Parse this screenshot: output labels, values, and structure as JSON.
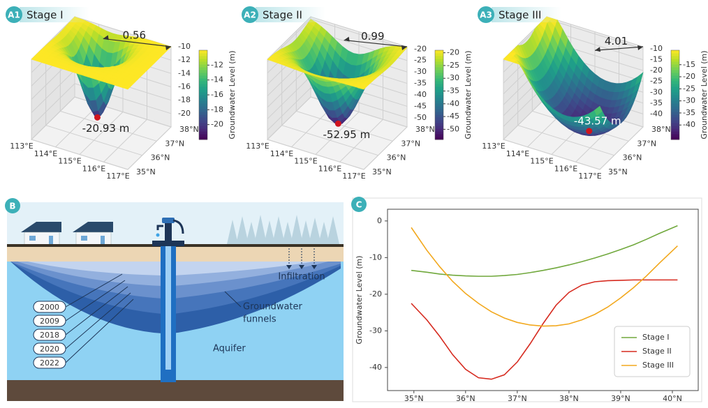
{
  "chart_data": [
    {
      "type": "surface",
      "panel": "A1",
      "title": "Stage I",
      "distance": 0.56,
      "minimum": {
        "value": -20.93,
        "label": "-20.93 m"
      },
      "xlim": [
        113,
        117
      ],
      "xticks": [
        {
          "value": 113,
          "label": "113°E"
        },
        {
          "value": 114,
          "label": "114°E"
        },
        {
          "value": 115,
          "label": "115°E"
        },
        {
          "value": 116,
          "label": "116°E"
        },
        {
          "value": 117,
          "label": "117°E"
        }
      ],
      "ylim": [
        35,
        38
      ],
      "yticks": [
        {
          "value": 35,
          "label": "35°N"
        },
        {
          "value": 36,
          "label": "36°N"
        },
        {
          "value": 37,
          "label": "37°N"
        },
        {
          "value": 38,
          "label": "38°N"
        }
      ],
      "zlim": [
        -22,
        -10
      ],
      "zticks": [
        -10,
        -12,
        -14,
        -16,
        -18,
        -20
      ],
      "colorbar": {
        "label": "Groundwater Level (m)",
        "ticks": [
          -12,
          -14,
          -16,
          -18,
          -20
        ]
      }
    },
    {
      "type": "surface",
      "panel": "A2",
      "title": "Stage II",
      "distance": 0.99,
      "minimum": {
        "value": -52.95,
        "label": "-52.95 m"
      },
      "xlim": [
        113,
        117
      ],
      "xticks": [
        {
          "value": 113,
          "label": "113°E"
        },
        {
          "value": 114,
          "label": "114°E"
        },
        {
          "value": 115,
          "label": "115°E"
        },
        {
          "value": 116,
          "label": "116°E"
        },
        {
          "value": 117,
          "label": "117°E"
        }
      ],
      "ylim": [
        35,
        38
      ],
      "yticks": [
        {
          "value": 35,
          "label": "35°N"
        },
        {
          "value": 36,
          "label": "36°N"
        },
        {
          "value": 37,
          "label": "37°N"
        },
        {
          "value": 38,
          "label": "38°N"
        }
      ],
      "zlim": [
        -54,
        -19
      ],
      "zticks": [
        -20,
        -25,
        -30,
        -35,
        -40,
        -45,
        -50
      ],
      "colorbar": {
        "label": "Groundwater Level (m)",
        "ticks": [
          -20,
          -25,
          -30,
          -35,
          -40,
          -45,
          -50
        ]
      }
    },
    {
      "type": "surface",
      "panel": "A3",
      "title": "Stage III",
      "distance": 4.01,
      "minimum": {
        "value": -43.57,
        "label": "-43.57 m"
      },
      "xlim": [
        113,
        117
      ],
      "xticks": [
        {
          "value": 113,
          "label": "113°E"
        },
        {
          "value": 114,
          "label": "114°E"
        },
        {
          "value": 115,
          "label": "115°E"
        },
        {
          "value": 116,
          "label": "116°E"
        },
        {
          "value": 117,
          "label": "117°E"
        }
      ],
      "ylim": [
        35,
        38
      ],
      "yticks": [
        {
          "value": 35,
          "label": "35°N"
        },
        {
          "value": 36,
          "label": "36°N"
        },
        {
          "value": 37,
          "label": "37°N"
        },
        {
          "value": 38,
          "label": "38°N"
        }
      ],
      "zlim": [
        -46,
        -9
      ],
      "zticks": [
        -10,
        -15,
        -20,
        -25,
        -30,
        -35,
        -40
      ],
      "colorbar": {
        "label": "Groundwater Level (m)",
        "ticks": [
          -15,
          -20,
          -25,
          -30,
          -35,
          -40
        ]
      }
    },
    {
      "type": "line",
      "panel": "C",
      "ylabel": "Groundwater Level (m)",
      "x": [
        34.95,
        35.25,
        35.5,
        35.75,
        36,
        36.25,
        36.5,
        36.75,
        37,
        37.25,
        37.5,
        37.75,
        38,
        38.25,
        38.5,
        38.75,
        39,
        39.25,
        39.5,
        39.75,
        40.1
      ],
      "xlim": [
        34.49,
        40.5
      ],
      "xticks": [
        {
          "value": 35,
          "label": "35°N"
        },
        {
          "value": 36,
          "label": "36°N"
        },
        {
          "value": 37,
          "label": "37°N"
        },
        {
          "value": 38,
          "label": "38°N"
        },
        {
          "value": 39,
          "label": "39°N"
        },
        {
          "value": 40,
          "label": "40°N"
        }
      ],
      "ylim": [
        -46.3,
        3.2
      ],
      "yticks": [
        0,
        -10,
        -20,
        -30,
        -40
      ],
      "legend": "lower right",
      "series": [
        {
          "name": "Stage I",
          "color": "#70a83c",
          "values": [
            -13.5,
            -14,
            -14.5,
            -14.8,
            -15,
            -15.1,
            -15.1,
            -14.9,
            -14.6,
            -14.1,
            -13.5,
            -12.8,
            -12,
            -11.1,
            -10.1,
            -9,
            -7.8,
            -6.5,
            -5,
            -3.4,
            -1.3
          ]
        },
        {
          "name": "Stage II",
          "color": "#d62a1f",
          "values": [
            -22.5,
            -27,
            -31.5,
            -36.5,
            -40.5,
            -42.8,
            -43.2,
            -42,
            -38.5,
            -33.5,
            -28,
            -23,
            -19.5,
            -17.5,
            -16.6,
            -16.3,
            -16.2,
            -16.1,
            -16.1,
            -16.1,
            -16.1
          ]
        },
        {
          "name": "Stage III",
          "color": "#f2a81d",
          "values": [
            -1.8,
            -8,
            -12.5,
            -16.5,
            -19.8,
            -22.5,
            -24.8,
            -26.5,
            -27.7,
            -28.4,
            -28.7,
            -28.6,
            -28.1,
            -27,
            -25.5,
            -23.5,
            -21,
            -18.2,
            -15,
            -11.5,
            -6.8
          ]
        }
      ]
    }
  ],
  "diagram": {
    "panel": "B",
    "infiltration": "Infiltration",
    "funnels": [
      "Groundwater",
      "funnels"
    ],
    "aquifer": "Aquifer",
    "years": [
      "2000",
      "2009",
      "2018",
      "2020",
      "2022"
    ]
  }
}
